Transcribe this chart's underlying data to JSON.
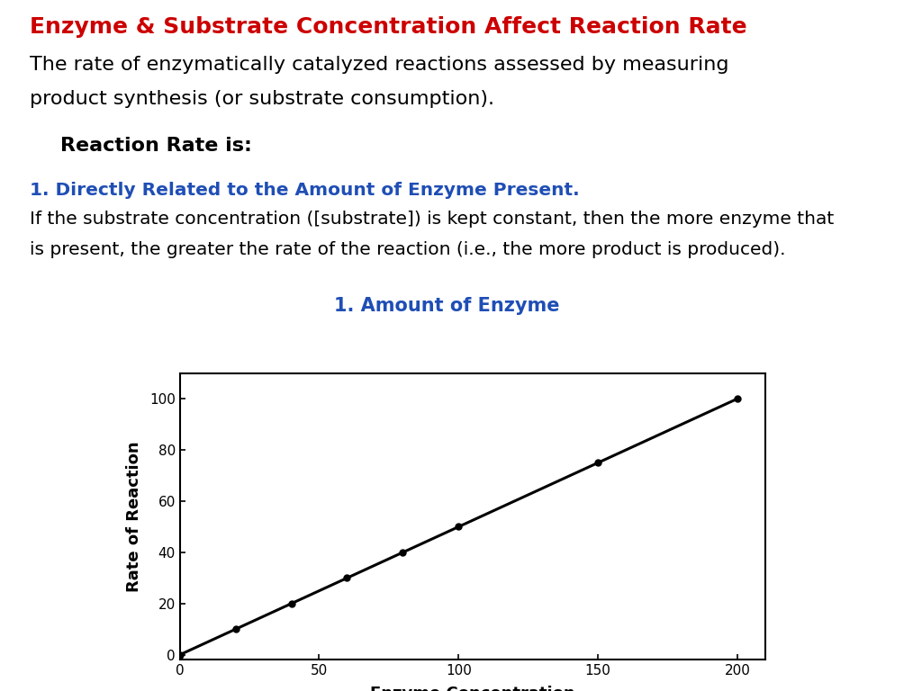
{
  "title": "Enzyme & Substrate Concentration Affect Reaction Rate",
  "title_color": "#cc0000",
  "subtitle_line1": "The rate of enzymatically catalyzed reactions assessed by measuring",
  "subtitle_line2": "product synthesis (or substrate consumption).",
  "subtitle_color": "#000000",
  "reaction_rate_label": "Reaction Rate is",
  "point1_heading": "1. Directly Related to the Amount of Enzyme Present.",
  "point1_heading_color": "#1f4eb5",
  "point1_text_line1": "If the substrate concentration ([substrate]) is kept constant, then the more enzyme that",
  "point1_text_line2": "is present, the greater the rate of the reaction (i.e., the more product is produced).",
  "graph_title": "1. Amount of Enzyme",
  "graph_title_color": "#1f4eb5",
  "x_data": [
    0,
    20,
    40,
    60,
    80,
    100,
    150,
    200
  ],
  "y_data": [
    0,
    10,
    20,
    30,
    40,
    50,
    75,
    100
  ],
  "xlabel": "Enzyme Concentration",
  "ylabel": "Rate of Reaction",
  "xlim": [
    0,
    210
  ],
  "ylim": [
    -2,
    110
  ],
  "xticks": [
    0,
    50,
    100,
    150,
    200
  ],
  "yticks": [
    0,
    20,
    40,
    60,
    80,
    100
  ],
  "line_color": "#000000",
  "marker": "o",
  "marker_size": 5,
  "line_width": 2.2,
  "background_color": "#ffffff",
  "title_fontsize": 18,
  "subtitle_fontsize": 16,
  "heading_fontsize": 14.5,
  "body_fontsize": 14.5,
  "graph_title_fontsize": 15
}
